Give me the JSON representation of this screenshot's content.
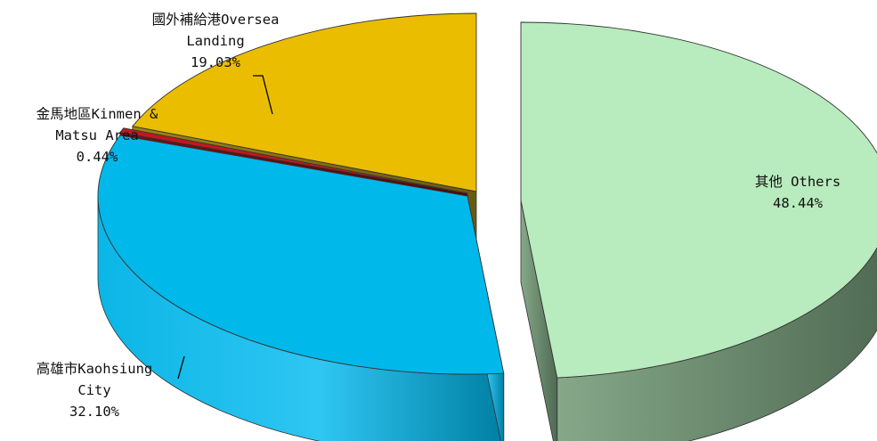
{
  "chart_data": {
    "type": "pie",
    "title": "",
    "style": "3d-exploded",
    "slices": [
      {
        "name": "其他 Others",
        "label_lines": [
          "其他 Others"
        ],
        "percent_label": "48.44%",
        "value": 48.44,
        "color": "#b8ebbd",
        "side_color": "#5a7a5c"
      },
      {
        "name": "高雄市Kaohsiung City",
        "label_lines": [
          "高雄市Kaohsiung",
          "City"
        ],
        "percent_label": "32.10%",
        "value": 32.1,
        "color": "#00b8ea",
        "side_color": "#0088ad"
      },
      {
        "name": "金馬地區Kinmen & Matsu Area",
        "label_lines": [
          "金馬地區Kinmen &",
          "Matsu Area"
        ],
        "percent_label": "0.44%",
        "value": 0.44,
        "color": "#c0181e",
        "side_color": "#6e0a0e"
      },
      {
        "name": "國外補給港Oversea Landing",
        "label_lines": [
          "國外補給港Oversea",
          "Landing"
        ],
        "percent_label": "19.03%",
        "value": 19.03,
        "color": "#ebbd00",
        "side_color": "#7d6a10"
      }
    ]
  }
}
